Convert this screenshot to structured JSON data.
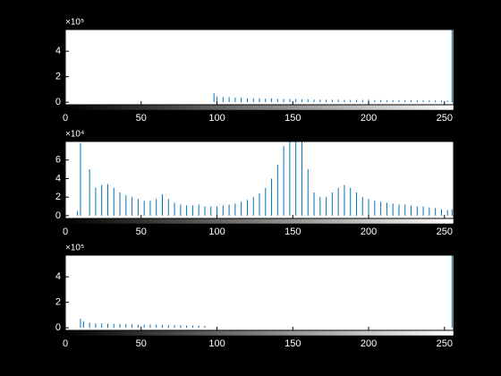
{
  "chart_data": [
    {
      "type": "stem",
      "y_multiplier": "×10⁵",
      "color": "#0072bd",
      "x": [
        0,
        4,
        8,
        12,
        16,
        20,
        24,
        28,
        32,
        36,
        40,
        44,
        48,
        52,
        56,
        60,
        64,
        68,
        72,
        76,
        80,
        84,
        88,
        92,
        96,
        98,
        100,
        104,
        108,
        112,
        116,
        120,
        124,
        128,
        132,
        136,
        140,
        144,
        148,
        152,
        156,
        160,
        164,
        168,
        172,
        176,
        180,
        184,
        188,
        192,
        196,
        200,
        204,
        208,
        212,
        216,
        220,
        224,
        228,
        232,
        236,
        240,
        244,
        248,
        252,
        255
      ],
      "values": [
        0,
        0,
        0,
        0,
        0,
        0,
        0,
        0,
        0,
        0,
        0,
        0,
        0,
        0,
        0,
        0,
        0,
        0,
        0,
        0,
        0,
        0,
        0,
        0,
        0,
        0.7,
        0.45,
        0.4,
        0.4,
        0.35,
        0.35,
        0.3,
        0.3,
        0.3,
        0.28,
        0.3,
        0.25,
        0.25,
        0.25,
        0.25,
        0.22,
        0.22,
        0.2,
        0.2,
        0.2,
        0.2,
        0.2,
        0.18,
        0.18,
        0.18,
        0.18,
        0.2,
        0.16,
        0.16,
        0.15,
        0.15,
        0.15,
        0.15,
        0.14,
        0.14,
        0.14,
        0.13,
        0.13,
        0.13,
        0.12,
        5.7
      ],
      "xlim": [
        0,
        256
      ],
      "xticks": [
        0,
        50,
        100,
        150,
        200,
        250
      ],
      "ylim": [
        -0.2,
        5.7
      ],
      "yticks": [
        0,
        2,
        4
      ]
    },
    {
      "type": "stem",
      "y_multiplier": "×10⁴",
      "color": "#0072bd",
      "x": [
        0,
        4,
        8,
        10,
        16,
        20,
        24,
        28,
        32,
        36,
        40,
        44,
        48,
        52,
        56,
        60,
        64,
        68,
        72,
        76,
        80,
        84,
        88,
        92,
        96,
        100,
        104,
        108,
        112,
        116,
        120,
        124,
        128,
        132,
        136,
        140,
        144,
        148,
        152,
        156,
        160,
        164,
        168,
        172,
        176,
        180,
        184,
        188,
        192,
        196,
        200,
        204,
        208,
        212,
        216,
        220,
        224,
        228,
        232,
        236,
        240,
        244,
        248,
        252,
        255
      ],
      "values": [
        0,
        0,
        0.5,
        7.8,
        5,
        3,
        3.3,
        3.4,
        3,
        2.5,
        2.2,
        2,
        1.8,
        1.6,
        1.6,
        1.8,
        2.3,
        1.8,
        1.4,
        1.2,
        1.1,
        1.1,
        1.2,
        1,
        1,
        1,
        1.1,
        1.2,
        1.3,
        1.5,
        1.7,
        2,
        2.4,
        3,
        4,
        5.5,
        7.5,
        8.5,
        8.5,
        8.5,
        5,
        2.5,
        2,
        2,
        2.5,
        3,
        3.3,
        3,
        2.5,
        2,
        1.8,
        1.6,
        1.5,
        1.4,
        1.3,
        1.2,
        1.2,
        1.1,
        1,
        1,
        0.9,
        0.8,
        0.7,
        0.6,
        0.7
      ],
      "xlim": [
        0,
        256
      ],
      "xticks": [
        0,
        50,
        100,
        150,
        200,
        250
      ],
      "ylim": [
        -0.3,
        8
      ],
      "yticks": [
        0,
        2,
        4,
        6
      ]
    },
    {
      "type": "stem",
      "y_multiplier": "×10⁵",
      "color": "#0072bd",
      "x": [
        0,
        4,
        8,
        10,
        12,
        16,
        20,
        24,
        28,
        32,
        36,
        40,
        44,
        48,
        52,
        56,
        60,
        64,
        68,
        72,
        76,
        80,
        84,
        88,
        92,
        96,
        255
      ],
      "values": [
        0,
        0,
        0,
        0.7,
        0.5,
        0.4,
        0.35,
        0.35,
        0.33,
        0.3,
        0.3,
        0.28,
        0.27,
        0.25,
        0.25,
        0.24,
        0.22,
        0.22,
        0.2,
        0.2,
        0.2,
        0.18,
        0.18,
        0.16,
        0.15,
        0,
        5.7
      ],
      "xlim": [
        0,
        256
      ],
      "xticks": [
        0,
        50,
        100,
        150,
        200,
        250
      ],
      "ylim": [
        -0.2,
        5.7
      ],
      "yticks": [
        0,
        2,
        4
      ]
    }
  ]
}
